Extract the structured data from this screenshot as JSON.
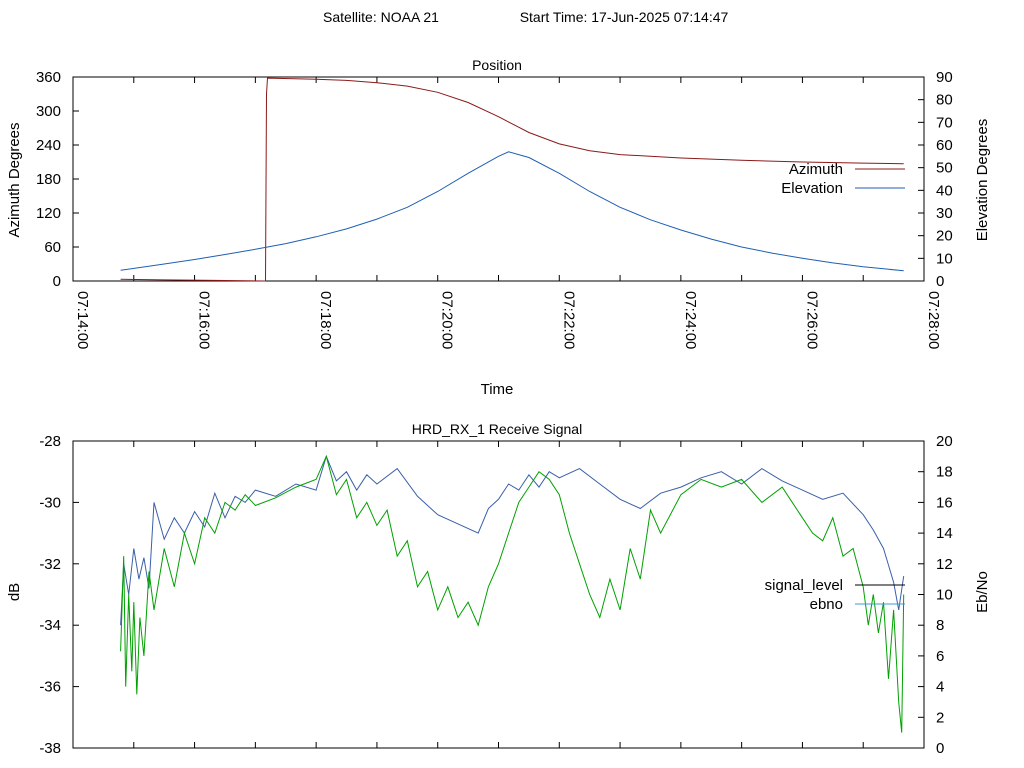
{
  "header": {
    "satellite_text": "Satellite: NOAA 21",
    "start_time_text": "Start Time: 17-Jun-2025 07:14:47"
  },
  "chart_data": [
    {
      "type": "line",
      "title": "Position",
      "xlabel": "Time",
      "ylabel": "Azimuth Degrees",
      "y2label": "Elevation Degrees",
      "xlim": [
        "07:14:00",
        "07:28:00"
      ],
      "ylim": [
        0,
        360
      ],
      "y2lim": [
        0,
        90
      ],
      "xticks": [
        "07:14:00",
        "07:16:00",
        "07:18:00",
        "07:20:00",
        "07:22:00",
        "07:24:00",
        "07:26:00",
        "07:28:00"
      ],
      "yticks": [
        "0",
        "60",
        "120",
        "180",
        "240",
        "300",
        "360"
      ],
      "y2ticks": [
        "0",
        "10",
        "20",
        "30",
        "40",
        "50",
        "60",
        "70",
        "80",
        "90"
      ],
      "legend_position": "right",
      "series": [
        {
          "name": "Azimuth",
          "axis": "left",
          "color": "#8b1a1a",
          "x": [
            "07:14:47",
            "07:15:30",
            "07:16:20",
            "07:16:50",
            "07:17:10",
            "07:17:11",
            "07:17:12",
            "07:18:00",
            "07:18:30",
            "07:19:00",
            "07:19:30",
            "07:20:00",
            "07:20:30",
            "07:21:00",
            "07:21:30",
            "07:22:00",
            "07:22:30",
            "07:23:00",
            "07:24:00",
            "07:25:00",
            "07:26:00",
            "07:27:00",
            "07:27:40"
          ],
          "values": [
            3,
            2,
            1,
            0.5,
            0,
            330,
            358,
            356,
            354,
            350,
            344,
            333,
            315,
            290,
            262,
            242,
            230,
            223,
            217,
            213,
            210,
            208,
            207
          ]
        },
        {
          "name": "Elevation",
          "axis": "right",
          "color": "#1f5fb4",
          "x": [
            "07:14:47",
            "07:15:30",
            "07:16:00",
            "07:16:30",
            "07:17:00",
            "07:17:30",
            "07:18:00",
            "07:18:30",
            "07:19:00",
            "07:19:30",
            "07:20:00",
            "07:20:30",
            "07:21:00",
            "07:21:10",
            "07:21:30",
            "07:22:00",
            "07:22:30",
            "07:23:00",
            "07:23:30",
            "07:24:00",
            "07:24:30",
            "07:25:00",
            "07:25:30",
            "07:26:00",
            "07:26:30",
            "07:27:00",
            "07:27:40"
          ],
          "values": [
            4.7,
            7.5,
            9.5,
            11.7,
            14.0,
            16.5,
            19.5,
            23.0,
            27.3,
            32.5,
            39.5,
            47.5,
            55.0,
            57.0,
            54.5,
            47.5,
            39.5,
            32.5,
            27.0,
            22.5,
            18.5,
            15.0,
            12.3,
            10.0,
            8.0,
            6.3,
            4.5
          ]
        }
      ]
    },
    {
      "type": "line",
      "title": "HRD_RX_1 Receive Signal",
      "xlabel": "",
      "ylabel": "dB",
      "y2label": "Eb/No",
      "xlim": [
        "07:14:00",
        "07:28:00"
      ],
      "ylim": [
        -38,
        -28
      ],
      "y2lim": [
        0,
        20
      ],
      "yticks": [
        "-28",
        "-30",
        "-32",
        "-34",
        "-36",
        "-38"
      ],
      "y2ticks": [
        "0",
        "2",
        "4",
        "6",
        "8",
        "10",
        "12",
        "14",
        "16",
        "18",
        "20"
      ],
      "legend_position": "right",
      "series": [
        {
          "name": "signal_level",
          "axis": "left",
          "color": "#3a5fa8",
          "x": [
            "07:14:47",
            "07:14:50",
            "07:14:55",
            "07:15:00",
            "07:15:05",
            "07:15:10",
            "07:15:15",
            "07:15:20",
            "07:15:30",
            "07:15:40",
            "07:15:50",
            "07:16:00",
            "07:16:10",
            "07:16:20",
            "07:16:30",
            "07:16:40",
            "07:16:50",
            "07:17:00",
            "07:17:20",
            "07:17:40",
            "07:18:00",
            "07:18:10",
            "07:18:20",
            "07:18:30",
            "07:18:40",
            "07:18:50",
            "07:19:00",
            "07:19:20",
            "07:19:40",
            "07:20:00",
            "07:20:20",
            "07:20:40",
            "07:20:50",
            "07:21:00",
            "07:21:10",
            "07:21:20",
            "07:21:30",
            "07:21:40",
            "07:21:50",
            "07:22:00",
            "07:22:20",
            "07:22:40",
            "07:23:00",
            "07:23:20",
            "07:23:40",
            "07:24:00",
            "07:24:20",
            "07:24:40",
            "07:25:00",
            "07:25:20",
            "07:25:40",
            "07:26:00",
            "07:26:20",
            "07:26:40",
            "07:27:00",
            "07:27:10",
            "07:27:20",
            "07:27:30",
            "07:27:35",
            "07:27:40"
          ],
          "values": [
            -34.0,
            -32.0,
            -33.0,
            -31.5,
            -32.5,
            -31.8,
            -32.8,
            -30.0,
            -31.2,
            -30.5,
            -31.0,
            -30.3,
            -30.8,
            -29.7,
            -30.5,
            -29.8,
            -30.0,
            -29.6,
            -29.8,
            -29.4,
            -29.6,
            -28.5,
            -29.3,
            -29.0,
            -29.6,
            -29.1,
            -29.4,
            -28.9,
            -29.8,
            -30.4,
            -30.7,
            -31.0,
            -30.2,
            -29.9,
            -29.4,
            -29.6,
            -29.1,
            -29.5,
            -29.0,
            -29.2,
            -28.9,
            -29.4,
            -29.9,
            -30.2,
            -29.7,
            -29.5,
            -29.2,
            -29.0,
            -29.4,
            -28.9,
            -29.3,
            -29.6,
            -29.9,
            -29.7,
            -30.4,
            -30.9,
            -31.5,
            -32.6,
            -33.5,
            -32.4
          ]
        },
        {
          "name": "ebno",
          "axis": "right",
          "color": "#00a000",
          "x": [
            "07:14:47",
            "07:14:50",
            "07:14:52",
            "07:14:55",
            "07:14:58",
            "07:15:00",
            "07:15:03",
            "07:15:06",
            "07:15:10",
            "07:15:15",
            "07:15:20",
            "07:15:30",
            "07:15:40",
            "07:15:50",
            "07:16:00",
            "07:16:10",
            "07:16:20",
            "07:16:30",
            "07:16:40",
            "07:16:50",
            "07:17:00",
            "07:17:20",
            "07:17:40",
            "07:18:00",
            "07:18:10",
            "07:18:20",
            "07:18:30",
            "07:18:40",
            "07:18:50",
            "07:19:00",
            "07:19:10",
            "07:19:20",
            "07:19:30",
            "07:19:40",
            "07:19:50",
            "07:20:00",
            "07:20:10",
            "07:20:20",
            "07:20:30",
            "07:20:40",
            "07:20:50",
            "07:21:00",
            "07:21:10",
            "07:21:20",
            "07:21:30",
            "07:21:40",
            "07:21:50",
            "07:22:00",
            "07:22:10",
            "07:22:20",
            "07:22:30",
            "07:22:40",
            "07:22:50",
            "07:23:00",
            "07:23:10",
            "07:23:20",
            "07:23:30",
            "07:23:40",
            "07:24:00",
            "07:24:20",
            "07:24:40",
            "07:25:00",
            "07:25:20",
            "07:25:40",
            "07:26:00",
            "07:26:10",
            "07:26:20",
            "07:26:30",
            "07:26:40",
            "07:26:50",
            "07:27:00",
            "07:27:05",
            "07:27:10",
            "07:27:15",
            "07:27:20",
            "07:27:25",
            "07:27:30",
            "07:27:35",
            "07:27:38",
            "07:27:40"
          ],
          "values": [
            6.3,
            12.5,
            4.0,
            10.0,
            5.0,
            9.5,
            3.5,
            8.5,
            6.0,
            11.5,
            9.0,
            13.0,
            10.5,
            14.0,
            12.0,
            15.0,
            14.0,
            16.0,
            15.5,
            16.5,
            15.8,
            16.3,
            17.0,
            17.5,
            19.0,
            16.5,
            17.5,
            15.0,
            16.0,
            14.5,
            15.5,
            12.5,
            13.5,
            10.5,
            11.5,
            9.0,
            10.5,
            8.5,
            9.5,
            8.0,
            10.5,
            12.0,
            14.0,
            16.0,
            17.0,
            18.0,
            17.5,
            16.5,
            14.0,
            12.0,
            10.0,
            8.5,
            11.0,
            9.0,
            13.0,
            11.0,
            15.5,
            14.0,
            16.5,
            17.5,
            17.0,
            17.5,
            16.0,
            17.0,
            15.0,
            14.0,
            13.5,
            15.0,
            12.5,
            13.0,
            10.5,
            8.0,
            10.0,
            7.5,
            9.5,
            4.5,
            9.0,
            3.0,
            1.0,
            10.0
          ]
        }
      ]
    }
  ]
}
